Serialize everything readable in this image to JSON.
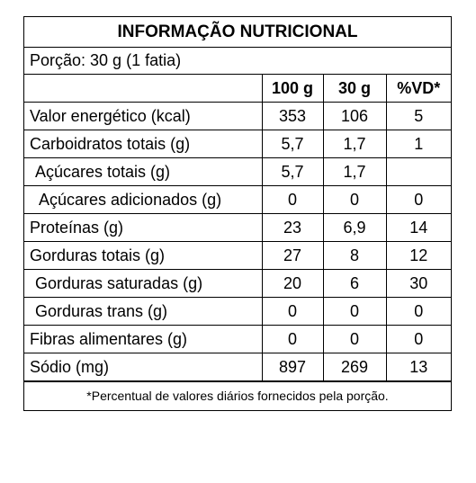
{
  "title": "INFORMAÇÃO NUTRICIONAL",
  "portion": "Porção: 30 g (1 fatia)",
  "headers": [
    "",
    "100 g",
    "30 g",
    "%VD*"
  ],
  "rows": [
    {
      "name": "Valor energético (kcal)",
      "v100": "353",
      "v30": "106",
      "vd": "5"
    },
    {
      "name": "Carboidratos totais (g)",
      "v100": "5,7",
      "v30": "1,7",
      "vd": "1"
    },
    {
      "name": "Açúcares totais (g)",
      "v100": "5,7",
      "v30": "1,7",
      "vd": ""
    },
    {
      "name": "Açúcares adicionados (g)",
      "v100": "0",
      "v30": "0",
      "vd": "0"
    },
    {
      "name": "Proteínas (g)",
      "v100": "23",
      "v30": "6,9",
      "vd": "14"
    },
    {
      "name": "Gorduras totais (g)",
      "v100": "27",
      "v30": "8",
      "vd": "12"
    },
    {
      "name": "Gorduras saturadas (g)",
      "v100": "20",
      "v30": "6",
      "vd": "30"
    },
    {
      "name": "Gorduras trans (g)",
      "v100": "0",
      "v30": "0",
      "vd": "0"
    },
    {
      "name": "Fibras alimentares (g)",
      "v100": "0",
      "v30": "0",
      "vd": "0"
    },
    {
      "name": "Sódio (mg)",
      "v100": "897",
      "v30": "269",
      "vd": "13"
    }
  ],
  "footnote": "*Percentual de valores diários fornecidos pela porção."
}
